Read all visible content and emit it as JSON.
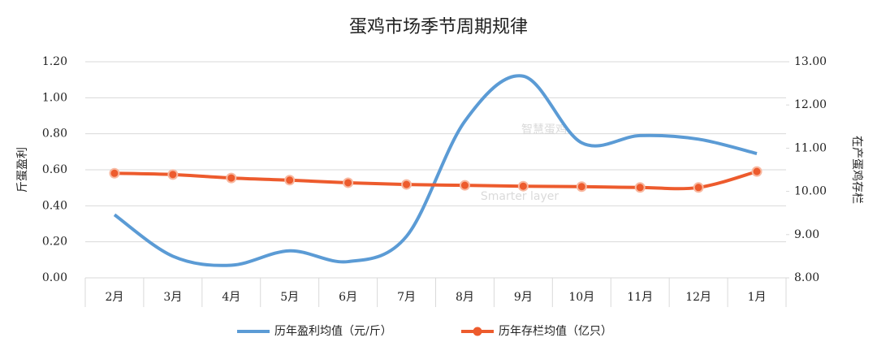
{
  "chart_data": {
    "type": "line",
    "title": "蛋鸡市场季节周期规律",
    "watermark": "智慧蛋鸡",
    "watermark_subtitle": "Smarter layer",
    "ylabel": "斤蛋盈利",
    "y2label": "在产蛋鸡存栏",
    "categories": [
      "2月",
      "3月",
      "4月",
      "5月",
      "6月",
      "7月",
      "8月",
      "9月",
      "10月",
      "11月",
      "12月",
      "1月"
    ],
    "series": [
      {
        "name": "历年盈利均值（元/斤）",
        "color": "#5b9bd5",
        "marker": false,
        "values": [
          0.35,
          0.12,
          0.07,
          0.15,
          0.09,
          0.23,
          0.87,
          1.12,
          0.75,
          0.79,
          0.77,
          0.69
        ]
      },
      {
        "name": "历年存栏均值（亿只）",
        "color": "#ed5b2d",
        "marker": true,
        "axis": "y2",
        "values": [
          10.42,
          10.39,
          10.31,
          10.26,
          10.2,
          10.16,
          10.14,
          10.12,
          10.11,
          10.09,
          10.09,
          10.46
        ]
      }
    ],
    "ylim": [
      0,
      1.2
    ],
    "yticks": [
      {
        "value": 0,
        "label": "0.00"
      },
      {
        "value": 0.2,
        "label": "0.20"
      },
      {
        "value": 0.4,
        "label": "0.40"
      },
      {
        "value": 0.6,
        "label": "0.60"
      },
      {
        "value": 0.8,
        "label": "0.80"
      },
      {
        "value": 1,
        "label": "1.00"
      },
      {
        "value": 1.2,
        "label": "1.20"
      }
    ],
    "y2lim": [
      8,
      13
    ],
    "y2ticks": [
      {
        "value": 8,
        "label": "8.00"
      },
      {
        "value": 9,
        "label": "9.00"
      },
      {
        "value": 10,
        "label": "10.00"
      },
      {
        "value": 11,
        "label": "11.00"
      },
      {
        "value": 12,
        "label": "12.00"
      },
      {
        "value": 13,
        "label": "13.00"
      }
    ],
    "grid": true,
    "legend": "bottom"
  }
}
